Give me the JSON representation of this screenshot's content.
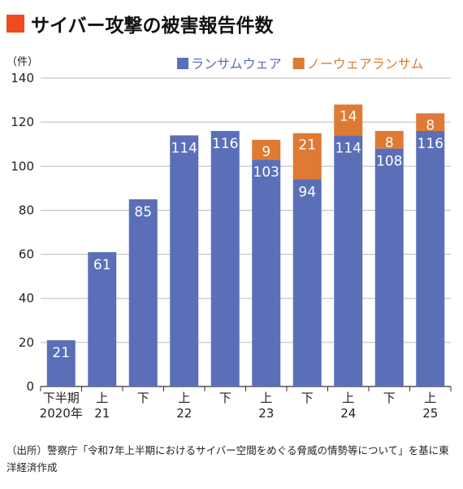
{
  "title": "サイバー攻撃の被害報告件数",
  "colors": {
    "title_marker": "#ee4b1f",
    "ransomware": "#5b6fb8",
    "noware": "#de7a33"
  },
  "source_note": "（出所）警察庁「令和7年上半期におけるサイバー空間をめぐる脅威の情勢等について」を基に東洋経済作成",
  "chart_data": {
    "type": "bar",
    "stacked": true,
    "title": "サイバー攻撃の被害報告件数",
    "ylabel": "（件）",
    "ylim": [
      0,
      140
    ],
    "yticks": [
      0,
      20,
      40,
      60,
      80,
      100,
      120,
      140
    ],
    "grid": true,
    "legend_position": "top-right",
    "categories": [
      [
        "下半期",
        "2020年"
      ],
      [
        "上",
        "21"
      ],
      [
        "下",
        ""
      ],
      [
        "上",
        "22"
      ],
      [
        "下",
        ""
      ],
      [
        "上",
        "23"
      ],
      [
        "下",
        ""
      ],
      [
        "上",
        "24"
      ],
      [
        "下",
        ""
      ],
      [
        "上",
        "25"
      ]
    ],
    "series": [
      {
        "name": "ランサムウェア",
        "values": [
          21,
          61,
          85,
          114,
          116,
          103,
          94,
          114,
          108,
          116
        ]
      },
      {
        "name": "ノーウェアランサム",
        "values": [
          0,
          0,
          0,
          0,
          0,
          9,
          21,
          14,
          8,
          8
        ]
      }
    ]
  }
}
